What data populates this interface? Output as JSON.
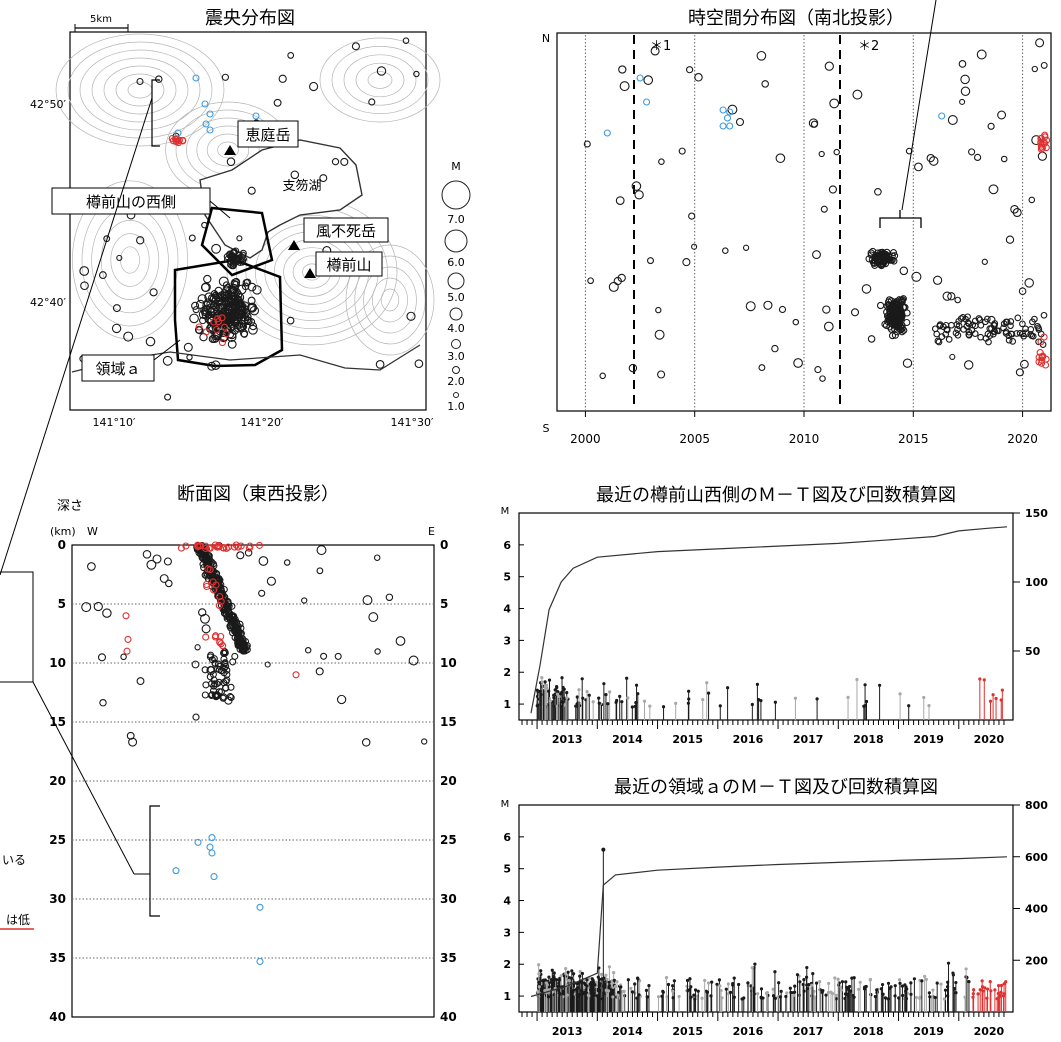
{
  "colors": {
    "black": "#1a1a1a",
    "red": "#e03030",
    "blue": "#3d9ae0",
    "gray": "#a8a8a8",
    "border": "#000000"
  },
  "map": {
    "title": "震央分布図",
    "scale_label": "5km",
    "lat_labels": [
      "42°50′",
      "42°40′"
    ],
    "lon_labels": [
      "141°10′",
      "141°20′",
      "141°30′"
    ],
    "place_labels": {
      "eniwa": "恵庭岳",
      "shikotsu": "支笏湖",
      "fuppushi": "風不死岳",
      "tarumae": "樽前山",
      "west_side": "樽前山の西側",
      "region_a": "領域ａ"
    }
  },
  "magnitude_legend": {
    "title": "M",
    "labels": [
      "7.0",
      "6.0",
      "5.0",
      "4.0",
      "3.0",
      "2.0",
      "1.0"
    ]
  },
  "timespace": {
    "title": "時空間分布図（南北投影）",
    "n_label": "N",
    "s_label": "S",
    "x_ticks": [
      2000,
      2005,
      2010,
      2015,
      2020
    ],
    "marker_1": "＊1",
    "marker_2": "＊2",
    "xlim": [
      1998.7,
      2021.3
    ]
  },
  "section": {
    "title": "断面図（東西投影）",
    "depth_label": "深さ",
    "km_label": "(km)",
    "w_label": "W",
    "e_label": "E",
    "y_ticks": [
      0,
      5,
      10,
      15,
      20,
      25,
      30,
      35,
      40
    ]
  },
  "mt_west": {
    "title": "最近の樽前山西側のＭ－Ｔ図及び回数積算図",
    "m_label": "M",
    "y_ticks": [
      1,
      2,
      3,
      4,
      5,
      6
    ],
    "y2_ticks": [
      50,
      100,
      150
    ],
    "x_ticks": [
      2013,
      2014,
      2015,
      2016,
      2017,
      2018,
      2019,
      2020
    ]
  },
  "mt_a": {
    "title": "最近の領域ａのＭ－Ｔ図及び回数積算図",
    "m_label": "M",
    "y_ticks": [
      1,
      2,
      3,
      4,
      5,
      6
    ],
    "y2_ticks": [
      200,
      400,
      600,
      800
    ],
    "x_ticks": [
      2013,
      2014,
      2015,
      2016,
      2017,
      2018,
      2019,
      2020
    ]
  },
  "side_fragments": [
    "いる",
    "は低"
  ],
  "chart_data": [
    {
      "type": "scatter",
      "name_ref": "map",
      "xlim": [
        141.1,
        141.5
      ],
      "ylim": [
        42.55,
        42.9
      ]
    },
    {
      "type": "scatter",
      "name_ref": "timespace",
      "xlim": [
        1998.7,
        2021.3
      ]
    },
    {
      "type": "scatter",
      "name_ref": "section",
      "ylim": [
        0,
        40
      ]
    },
    {
      "type": "line",
      "name_ref": "mt_west",
      "ylim": [
        0.5,
        7
      ],
      "y2lim": [
        0,
        150
      ],
      "cumulative": [
        [
          2012.9,
          5
        ],
        [
          2013.05,
          40
        ],
        [
          2013.2,
          80
        ],
        [
          2013.4,
          100
        ],
        [
          2013.6,
          110
        ],
        [
          2014.0,
          118
        ],
        [
          2015.0,
          122
        ],
        [
          2016.0,
          124
        ],
        [
          2017.0,
          126
        ],
        [
          2018.0,
          128
        ],
        [
          2019.0,
          131
        ],
        [
          2019.6,
          133
        ],
        [
          2020.0,
          137
        ],
        [
          2020.5,
          139
        ],
        [
          2020.8,
          140
        ]
      ]
    },
    {
      "type": "line",
      "name_ref": "mt_a",
      "ylim": [
        0.5,
        7
      ],
      "y2lim": [
        0,
        800
      ],
      "cumulative": [
        [
          2012.9,
          60
        ],
        [
          2013.5,
          100
        ],
        [
          2014.0,
          150
        ],
        [
          2014.1,
          490
        ],
        [
          2014.3,
          530
        ],
        [
          2015.0,
          548
        ],
        [
          2016.0,
          560
        ],
        [
          2017.0,
          570
        ],
        [
          2018.0,
          578
        ],
        [
          2019.0,
          586
        ],
        [
          2020.0,
          593
        ],
        [
          2020.8,
          600
        ]
      ]
    }
  ]
}
